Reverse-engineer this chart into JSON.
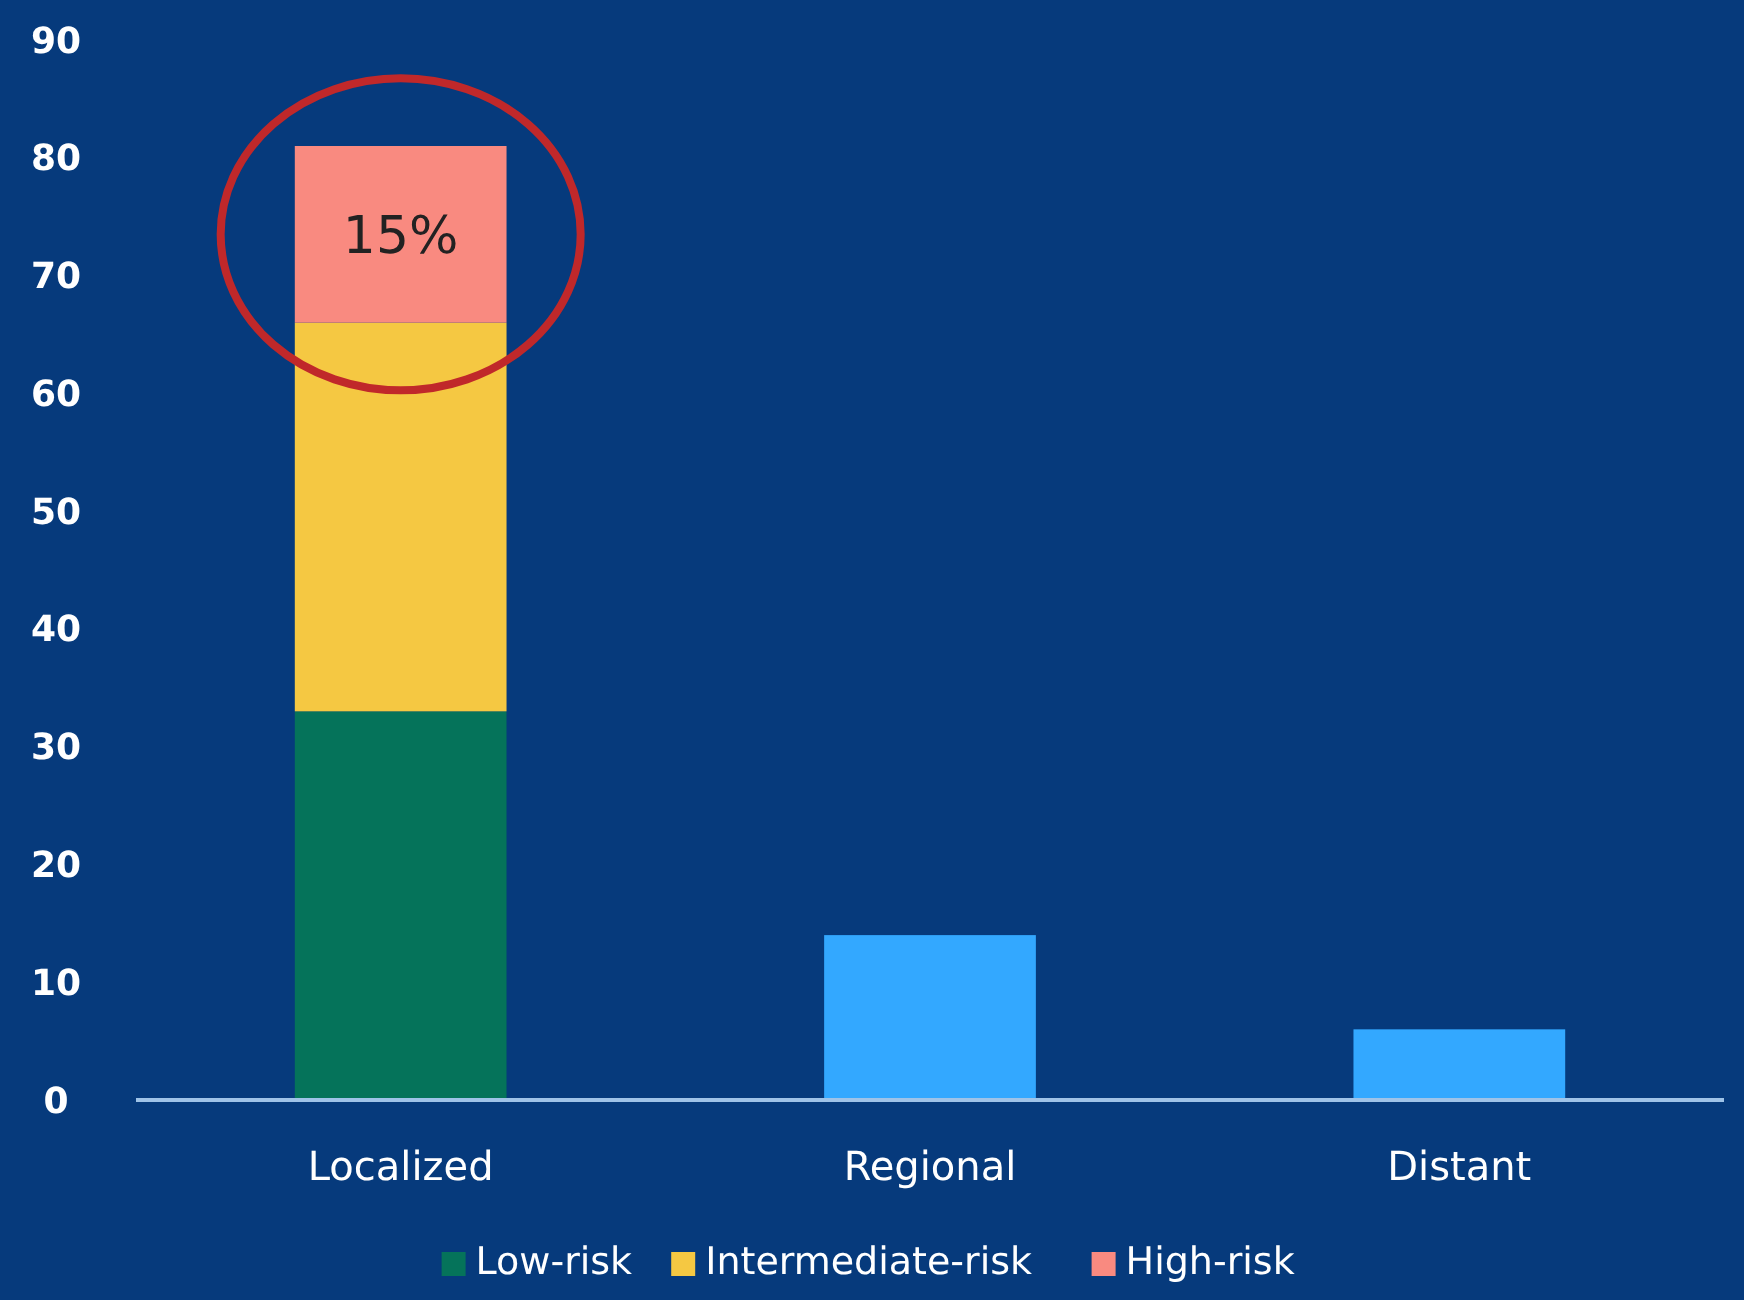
{
  "chart_data": {
    "type": "bar",
    "stacked": true,
    "categories": [
      "Localized",
      "Regional",
      "Distant"
    ],
    "series": [
      {
        "name": "Low-risk",
        "color": "#05735a",
        "values": [
          33,
          null,
          null
        ]
      },
      {
        "name": "Intermediate-risk",
        "color": "#f5c842",
        "values": [
          33,
          null,
          null
        ]
      },
      {
        "name": "High-risk",
        "color": "#f98a80",
        "values": [
          15,
          null,
          null
        ]
      },
      {
        "color": "#33a8ff",
        "values": [
          null,
          14,
          6
        ]
      }
    ],
    "ylim": [
      0,
      90
    ],
    "yticks": [
      0,
      10,
      20,
      30,
      40,
      50,
      60,
      70,
      80,
      90
    ],
    "grid": false,
    "legend": "bottom",
    "annotations": [
      "15%"
    ]
  }
}
